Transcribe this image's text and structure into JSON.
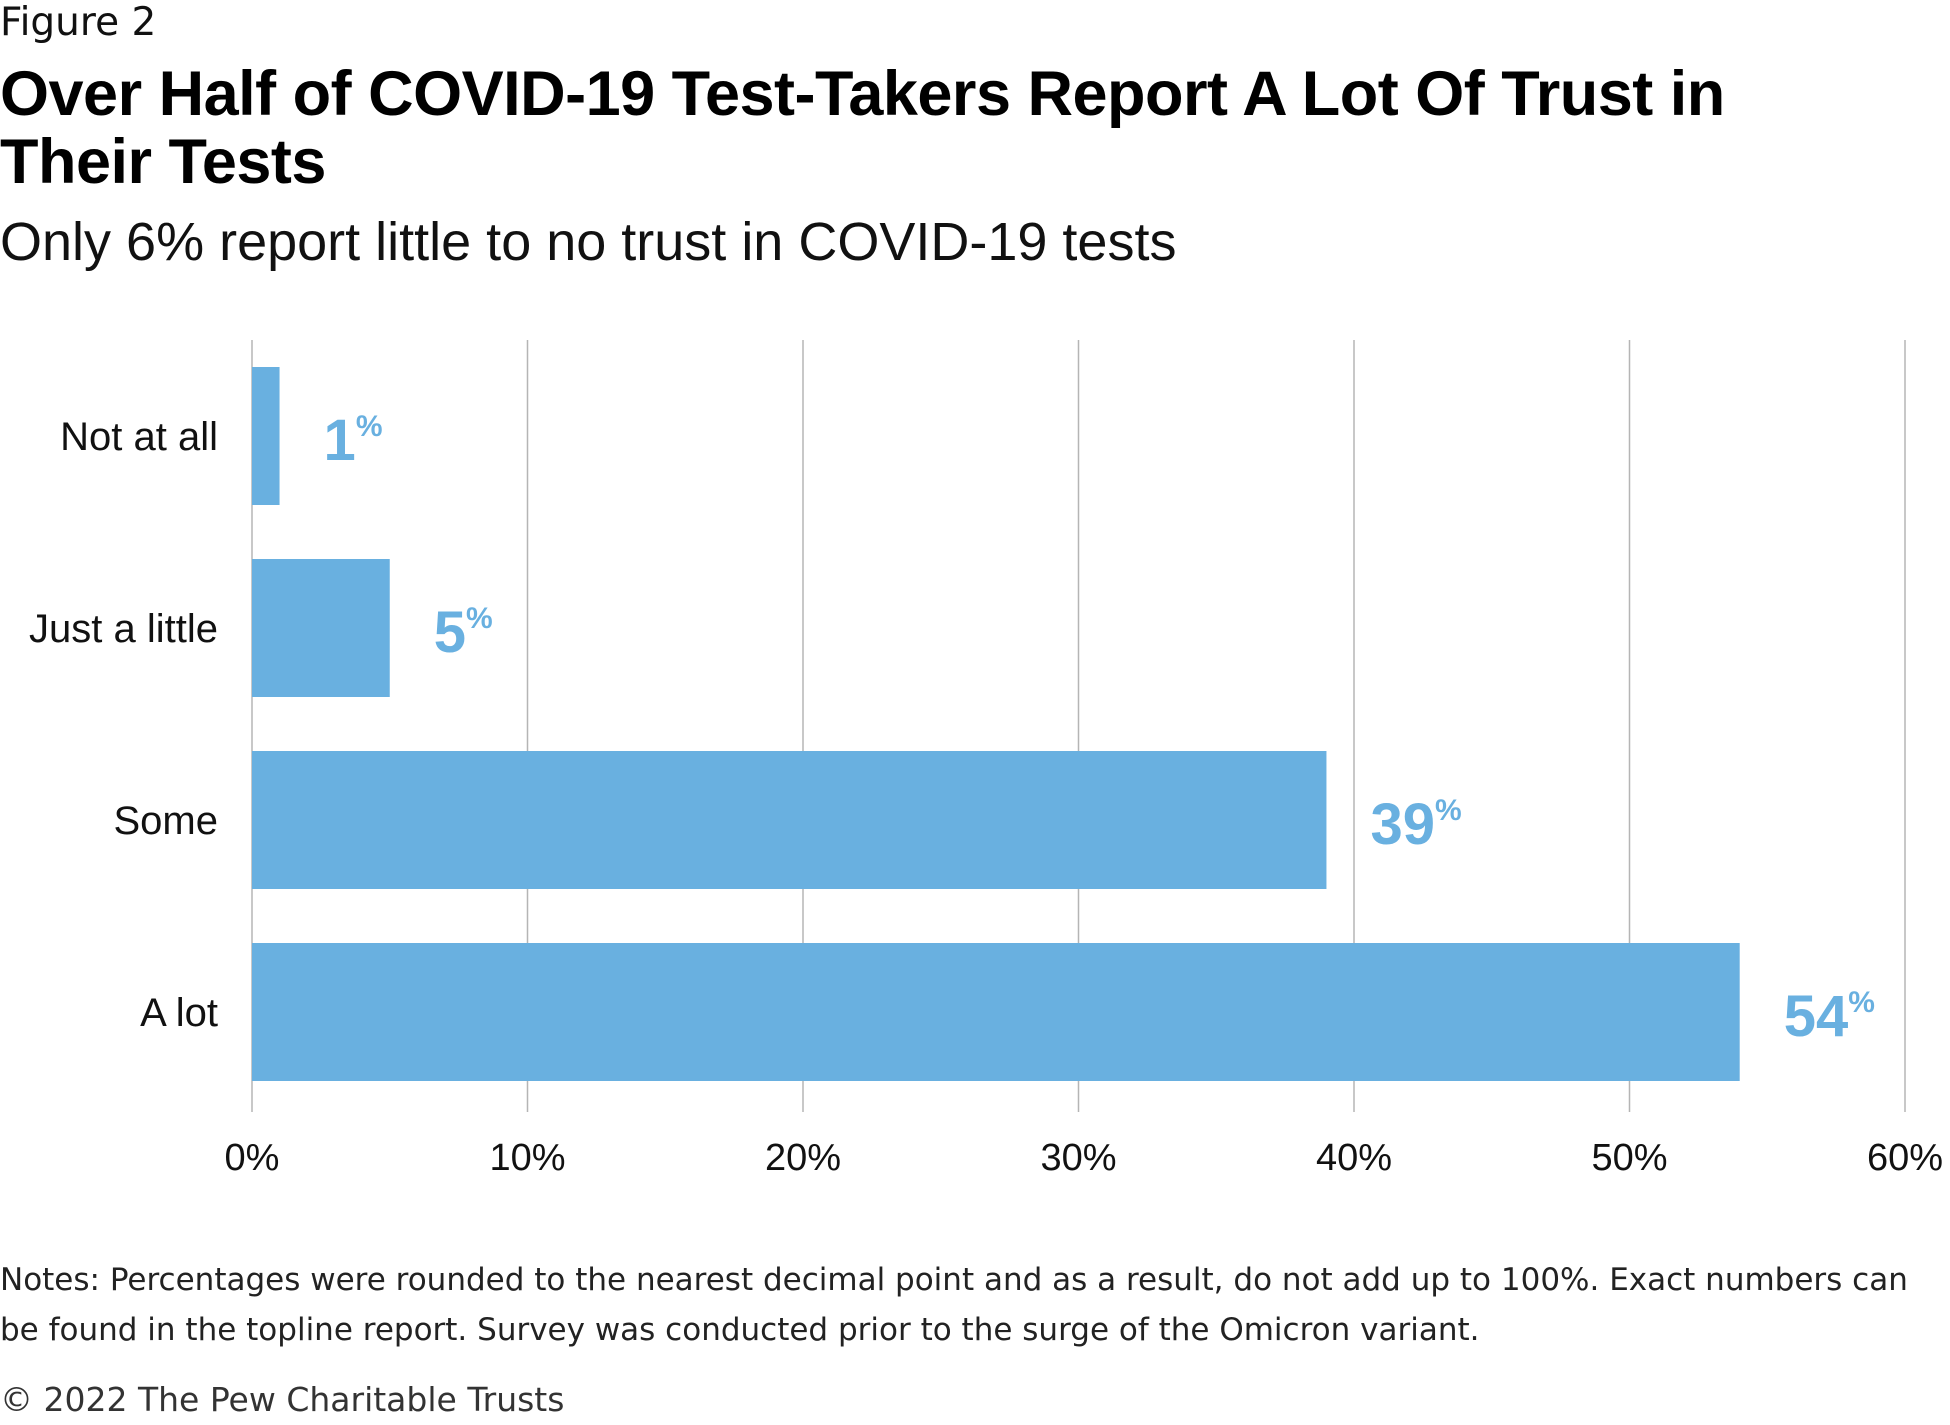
{
  "figure_label": "Figure 2",
  "title": "Over Half of COVID-19 Test-Takers Report A Lot Of Trust in Their Tests",
  "subtitle": "Only 6% report little to no trust in COVID-19 tests",
  "notes": "Notes: Percentages were rounded to the nearest decimal point and as a result, do not add up to 100%. Exact numbers can be found in the topline report. Survey was conducted prior to the surge of the Omicron variant.",
  "copyright": "© 2022 The Pew Charitable Trusts",
  "colors": {
    "bar": "#69b0e0",
    "label": "#69b0e0",
    "grid": "#b5b5b5"
  },
  "chart_data": {
    "type": "bar",
    "orientation": "horizontal",
    "categories": [
      "Not at all",
      "Just a little",
      "Some",
      "A lot"
    ],
    "values": [
      1,
      5,
      39,
      54
    ],
    "data_labels": [
      "1",
      "5",
      "39",
      "54"
    ],
    "data_label_unit": "%",
    "xlim": [
      0,
      60
    ],
    "x_ticks": [
      0,
      10,
      20,
      30,
      40,
      50,
      60
    ],
    "x_tick_labels": [
      "0%",
      "10%",
      "20%",
      "30%",
      "40%",
      "50%",
      "60%"
    ],
    "grid": true,
    "legend": "none"
  }
}
